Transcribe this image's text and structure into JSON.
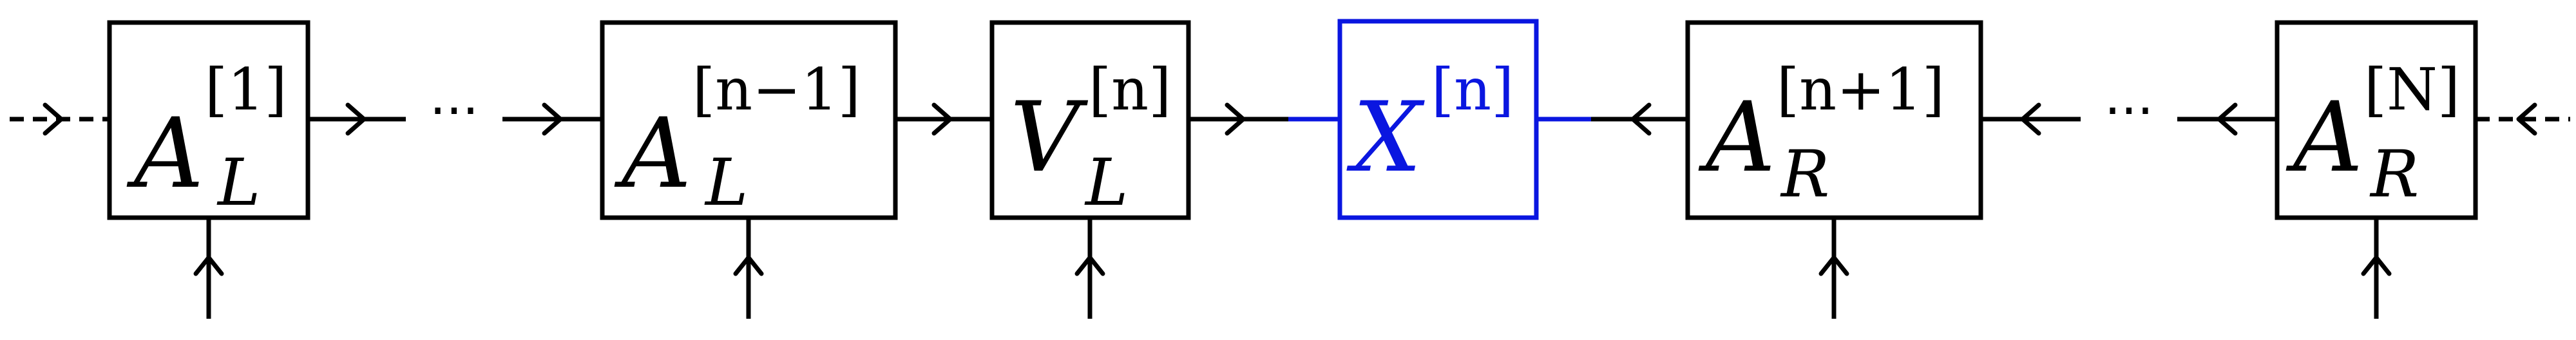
{
  "colors": {
    "black": "#000000",
    "highlight": "#0a16e0"
  },
  "tensors": [
    {
      "id": "a1",
      "base": "A",
      "sup": "[1]",
      "sub": "L",
      "color": "#000000"
    },
    {
      "id": "an1",
      "base": "A",
      "sup": "[n−1]",
      "sub": "L",
      "color": "#000000"
    },
    {
      "id": "v",
      "base": "V",
      "sup": "[n]",
      "sub": "L",
      "color": "#000000"
    },
    {
      "id": "x",
      "base": "X",
      "sup": "[n]",
      "sub": "",
      "color": "#0a16e0"
    },
    {
      "id": "ar1",
      "base": "A",
      "sup": "[n+1]",
      "sub": "R",
      "color": "#000000"
    },
    {
      "id": "aN",
      "base": "A",
      "sup": "[N]",
      "sub": "R",
      "color": "#000000"
    }
  ],
  "ellipsis": "···"
}
